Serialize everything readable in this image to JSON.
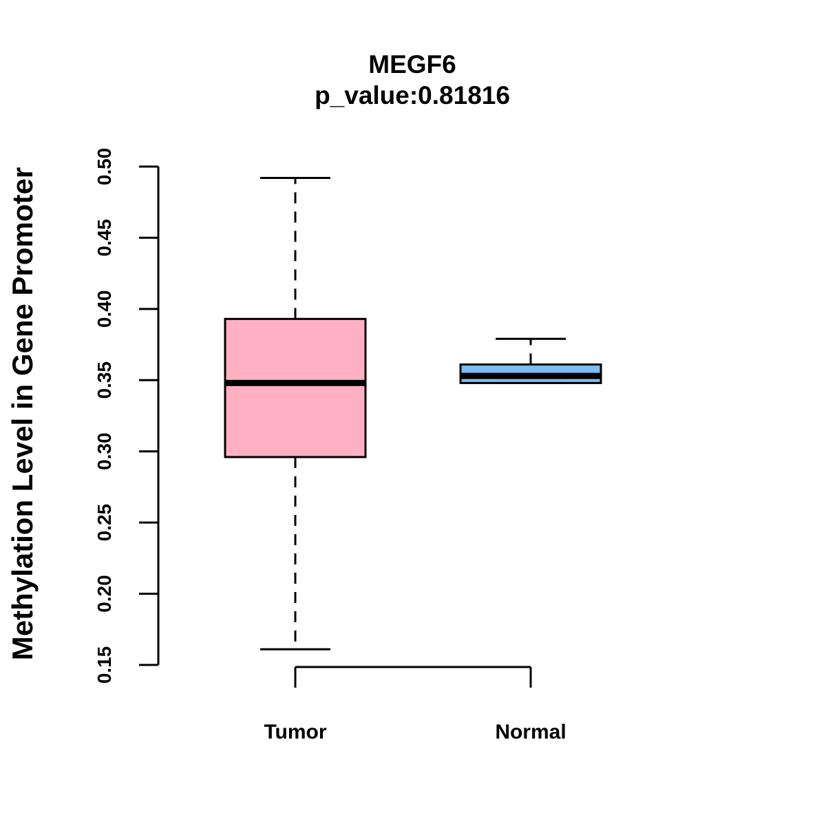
{
  "chart_data": {
    "type": "boxplot",
    "title": "MEGF6",
    "subtitle": "p_value:0.81816",
    "xlabel": "",
    "ylabel": "Methylation Level in Gene Promoter",
    "ylim": [
      0.15,
      0.5
    ],
    "yticks": [
      "0.15",
      "0.20",
      "0.25",
      "0.30",
      "0.35",
      "0.40",
      "0.45",
      "0.50"
    ],
    "categories": [
      "Tumor",
      "Normal"
    ],
    "boxes": [
      {
        "name": "Tumor",
        "min": 0.161,
        "q1": 0.296,
        "median": 0.348,
        "q3": 0.393,
        "max": 0.492,
        "color": "#FFB1C3"
      },
      {
        "name": "Normal",
        "min": 0.348,
        "q1": 0.348,
        "median": 0.353,
        "q3": 0.361,
        "max": 0.379,
        "color": "#7DBDF5"
      }
    ]
  }
}
